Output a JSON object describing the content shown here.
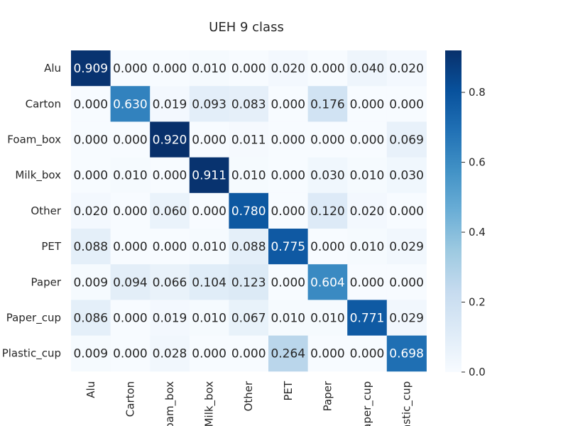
{
  "chart_data": {
    "type": "heatmap",
    "title": "UEH 9 class",
    "row_labels": [
      "Alu",
      "Carton",
      "Foam_box",
      "Milk_box",
      "Other",
      "PET",
      "Paper",
      "Paper_cup",
      "Plastic_cup"
    ],
    "col_labels": [
      "Alu",
      "Carton",
      "Foam_box",
      "Milk_box",
      "Other",
      "PET",
      "Paper",
      "Paper_cup",
      "Plastic_cup"
    ],
    "values": [
      [
        0.909,
        0.0,
        0.0,
        0.01,
        0.0,
        0.02,
        0.0,
        0.04,
        0.02
      ],
      [
        0.0,
        0.63,
        0.019,
        0.093,
        0.083,
        0.0,
        0.176,
        0.0,
        0.0
      ],
      [
        0.0,
        0.0,
        0.92,
        0.0,
        0.011,
        0.0,
        0.0,
        0.0,
        0.069
      ],
      [
        0.0,
        0.01,
        0.0,
        0.911,
        0.01,
        0.0,
        0.03,
        0.01,
        0.03
      ],
      [
        0.02,
        0.0,
        0.06,
        0.0,
        0.78,
        0.0,
        0.12,
        0.02,
        0.0
      ],
      [
        0.088,
        0.0,
        0.0,
        0.01,
        0.088,
        0.775,
        0.0,
        0.01,
        0.029
      ],
      [
        0.009,
        0.094,
        0.066,
        0.104,
        0.123,
        0.0,
        0.604,
        0.0,
        0.0
      ],
      [
        0.086,
        0.0,
        0.019,
        0.01,
        0.067,
        0.01,
        0.01,
        0.771,
        0.029
      ],
      [
        0.009,
        0.0,
        0.028,
        0.0,
        0.0,
        0.264,
        0.0,
        0.0,
        0.698
      ]
    ],
    "value_format": "3 decimals",
    "colormap": "Blues",
    "vmin": 0.0,
    "vmax": 0.92,
    "colorbar_ticks": [
      "0.0",
      "0.2",
      "0.4",
      "0.6",
      "0.8"
    ],
    "x_tick_rotation": "vertical",
    "grid": false
  }
}
